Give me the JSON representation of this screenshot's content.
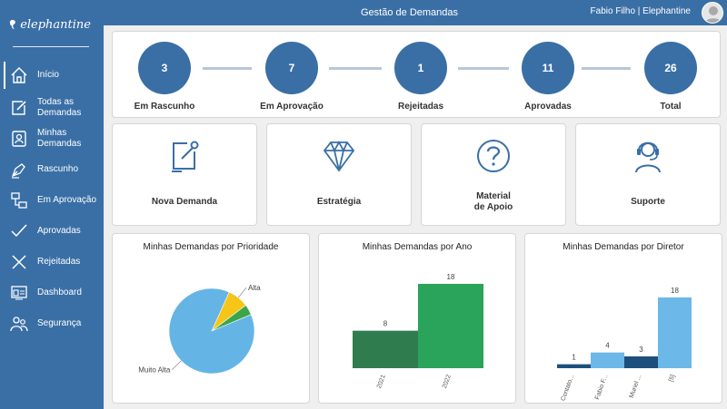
{
  "app": {
    "logo_text": "elephantine"
  },
  "header": {
    "title": "Gestão de Demandas",
    "user": "Fabio Filho | Elephantine"
  },
  "sidebar": {
    "items": [
      {
        "label": "Início",
        "icon": "home-icon"
      },
      {
        "label": "Todas as\nDemandas",
        "icon": "edit-icon"
      },
      {
        "label": "Minhas\nDemandas",
        "icon": "user-card-icon"
      },
      {
        "label": "Rascunho",
        "icon": "pen-icon"
      },
      {
        "label": "Em Aprovação",
        "icon": "flow-icon"
      },
      {
        "label": "Aprovadas",
        "icon": "check-icon"
      },
      {
        "label": "Rejeitadas",
        "icon": "x-icon"
      },
      {
        "label": "Dashboard",
        "icon": "dashboard-icon"
      },
      {
        "label": "Segurança",
        "icon": "people-icon"
      }
    ]
  },
  "status": {
    "steps": [
      {
        "count": "3",
        "label": "Em Rascunho"
      },
      {
        "count": "7",
        "label": "Em Aprovação"
      },
      {
        "count": "1",
        "label": "Rejeitadas"
      },
      {
        "count": "11",
        "label": "Aprovadas"
      },
      {
        "count": "26",
        "label": "Total"
      }
    ]
  },
  "tiles": [
    {
      "label": "Nova Demanda",
      "icon": "new-request-icon"
    },
    {
      "label": "Estratégia",
      "icon": "diamond-icon"
    },
    {
      "label": "Material\nde Apoio",
      "icon": "question-icon"
    },
    {
      "label": "Suporte",
      "icon": "headset-icon"
    }
  ],
  "colors": {
    "primary": "#3a6fa6",
    "background": "#ececec"
  },
  "chart_data": [
    {
      "type": "pie",
      "title": "Minhas Demandas por Prioridade",
      "slices": [
        {
          "name": "Muito Alta",
          "value": 22,
          "color": "#64b5e6",
          "labeled": true
        },
        {
          "name": "Alta",
          "value": 2,
          "color": "#f5c518",
          "labeled": true
        },
        {
          "name": "",
          "value": 1,
          "color": "#3aa648",
          "labeled": false
        }
      ]
    },
    {
      "type": "bar",
      "title": "Minhas Demandas por Ano",
      "categories": [
        "2021",
        "2022"
      ],
      "values": [
        8,
        18
      ],
      "colors": [
        "#2f7d4f",
        "#2aa35b"
      ],
      "ylim": [
        0,
        18
      ]
    },
    {
      "type": "bar",
      "title": "Minhas Demandas por Diretor",
      "categories": [
        "Contato...",
        "Fabio F...",
        "Muriel ...",
        "[5]"
      ],
      "values": [
        1,
        4,
        3,
        18
      ],
      "colors": [
        "#1d4f7c",
        "#6cb8e8",
        "#1d4f7c",
        "#6cb8e8"
      ],
      "ylim": [
        0,
        18
      ]
    }
  ]
}
